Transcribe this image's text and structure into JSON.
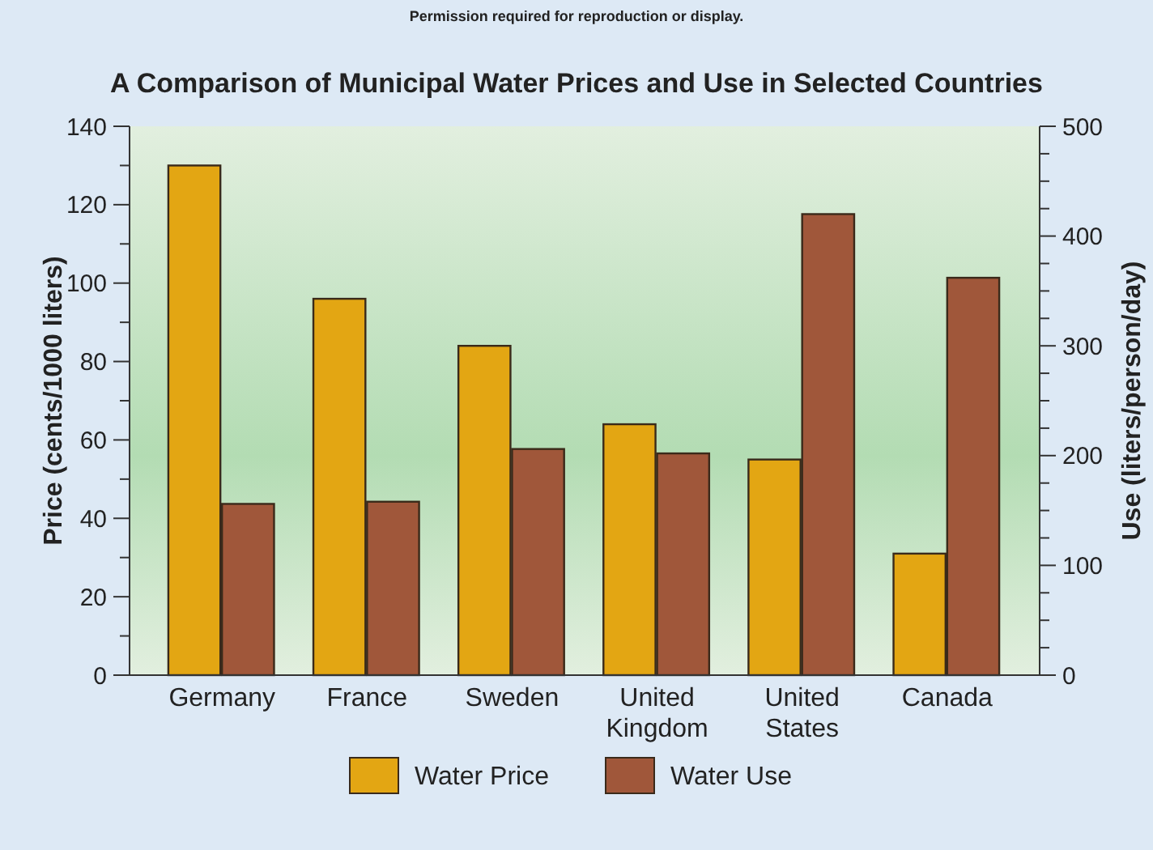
{
  "chart_data": {
    "type": "bar",
    "title": "A Comparison of Municipal Water Prices and Use in Selected Countries",
    "annotations": [
      "Permission required for reproduction or display."
    ],
    "categories": [
      "Germany",
      "France",
      "Sweden",
      "United Kingdom",
      "United States",
      "Canada"
    ],
    "series": [
      {
        "name": "Water Price",
        "color": "#e3a613",
        "values": [
          130,
          96,
          84,
          64,
          55,
          31
        ]
      },
      {
        "name": "Water Use",
        "color": "#a0573a",
        "axis": "y2",
        "values": [
          156,
          158,
          206,
          202,
          420,
          362
        ]
      }
    ],
    "ylabel": "Price (cents/1000 liters)",
    "y2label": "Use (liters/person/day)",
    "ylim": [
      0,
      140
    ],
    "yticks": [
      0,
      {
        "value": 10,
        "label": null
      },
      20,
      {
        "value": 30,
        "label": null
      },
      40,
      {
        "value": 50,
        "label": null
      },
      60,
      {
        "value": 70,
        "label": null
      },
      80,
      {
        "value": 90,
        "label": null
      },
      100,
      {
        "value": 110,
        "label": null
      },
      120,
      {
        "value": 130,
        "label": null
      },
      140
    ],
    "y2lim": [
      0,
      500
    ],
    "y2ticks": [
      0,
      {
        "value": 25,
        "label": null
      },
      {
        "value": 50,
        "label": null
      },
      {
        "value": 75,
        "label": null
      },
      100,
      {
        "value": 125,
        "label": null
      },
      {
        "value": 150,
        "label": null
      },
      {
        "value": 175,
        "label": null
      },
      200,
      {
        "value": 225,
        "label": null
      },
      {
        "value": 250,
        "label": null
      },
      {
        "value": 275,
        "label": null
      },
      300,
      {
        "value": 325,
        "label": null
      },
      {
        "value": 350,
        "label": null
      },
      {
        "value": 375,
        "label": null
      },
      400,
      {
        "value": 425,
        "label": null
      },
      {
        "value": 450,
        "label": null
      },
      {
        "value": 475,
        "label": null
      },
      500
    ],
    "legend": "bottom"
  }
}
